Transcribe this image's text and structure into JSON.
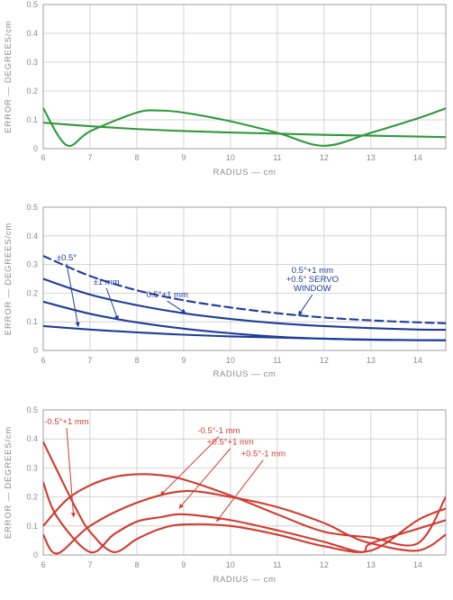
{
  "chart_data": [
    {
      "type": "line",
      "title": "",
      "xlabel": "RADIUS — cm",
      "ylabel": "ERROR — DEGREES/cm",
      "xlim": [
        6,
        14.6
      ],
      "ylim": [
        0,
        0.5
      ],
      "x_ticks": [
        "6",
        "7",
        "8",
        "9",
        "10",
        "11",
        "12",
        "13",
        "14"
      ],
      "y_ticks": [
        "0",
        "0.1",
        "0.2",
        "0.3",
        "0.4",
        "0.5"
      ],
      "grid": true,
      "color": "#2e9a3a",
      "series": [
        {
          "x": [
            6,
            6.5,
            7,
            8,
            8.5,
            9,
            10,
            11,
            12,
            13,
            14,
            14.6
          ],
          "y": [
            0.14,
            0.012,
            0.06,
            0.125,
            0.132,
            0.125,
            0.095,
            0.055,
            0.01,
            0.055,
            0.105,
            0.14
          ],
          "dash": false
        },
        {
          "x": [
            6,
            7,
            8,
            9,
            10,
            11,
            12,
            13,
            14,
            14.6
          ],
          "y": [
            0.09,
            0.078,
            0.068,
            0.061,
            0.056,
            0.052,
            0.048,
            0.045,
            0.042,
            0.04
          ],
          "dash": false
        }
      ],
      "annotations": []
    },
    {
      "type": "line",
      "title": "",
      "xlabel": "RADIUS — cm",
      "ylabel": "ERROR — DEGREES/cm",
      "xlim": [
        6,
        14.6
      ],
      "ylim": [
        0,
        0.5
      ],
      "x_ticks": [
        "6",
        "7",
        "8",
        "9",
        "10",
        "11",
        "12",
        "13",
        "14"
      ],
      "y_ticks": [
        "0",
        "0.1",
        "0.2",
        "0.3",
        "0.4",
        "0.5"
      ],
      "grid": true,
      "color": "#1f3d9a",
      "series": [
        {
          "x": [
            6,
            7,
            8,
            9,
            10,
            11,
            12,
            13,
            14,
            14.6
          ],
          "y": [
            0.33,
            0.26,
            0.21,
            0.175,
            0.15,
            0.13,
            0.115,
            0.105,
            0.098,
            0.095
          ],
          "dash": true
        },
        {
          "x": [
            6,
            7,
            8,
            9,
            10,
            11,
            12,
            13,
            14,
            14.6
          ],
          "y": [
            0.25,
            0.195,
            0.158,
            0.13,
            0.11,
            0.095,
            0.085,
            0.078,
            0.073,
            0.072
          ],
          "dash": false
        },
        {
          "x": [
            6,
            7,
            8,
            9,
            10,
            11,
            12,
            13,
            14,
            14.6
          ],
          "y": [
            0.17,
            0.128,
            0.098,
            0.076,
            0.06,
            0.048,
            0.041,
            0.037,
            0.036,
            0.036
          ],
          "dash": false
        },
        {
          "x": [
            6,
            7,
            8,
            9,
            10,
            11,
            12,
            13,
            14,
            14.6
          ],
          "y": [
            0.085,
            0.073,
            0.063,
            0.055,
            0.049,
            0.045,
            0.041,
            0.038,
            0.036,
            0.035
          ],
          "dash": false
        }
      ],
      "annotations": [
        {
          "lines": [
            "±0.5°"
          ],
          "x": 6.5,
          "y": 0.315,
          "ax": 6.75,
          "ay": 0.082
        },
        {
          "lines": [
            "±1 mm"
          ],
          "x": 7.35,
          "y": 0.23,
          "ax": 7.6,
          "ay": 0.105
        },
        {
          "lines": [
            "0.5°+1 mm"
          ],
          "x": 8.65,
          "y": 0.185,
          "ax": 9.05,
          "ay": 0.13
        },
        {
          "lines": [
            "0.5°+1 mm",
            "+0.5° SERVO",
            "WINDOW"
          ],
          "x": 11.75,
          "y": 0.27,
          "ax": 11.45,
          "ay": 0.122
        }
      ]
    },
    {
      "type": "line",
      "title": "",
      "xlabel": "RADIUS — cm",
      "ylabel": "ERROR — DEGREES/cm",
      "xlim": [
        6,
        14.6
      ],
      "ylim": [
        0,
        0.5
      ],
      "x_ticks": [
        "6",
        "7",
        "8",
        "9",
        "10",
        "11",
        "12",
        "13",
        "14"
      ],
      "y_ticks": [
        "0",
        "0.1",
        "0.2",
        "0.3",
        "0.4",
        "0.5"
      ],
      "grid": true,
      "color": "#d23a2e",
      "series": [
        {
          "x": [
            6,
            6.3,
            6.7,
            7,
            7.5,
            8,
            8.5,
            9,
            10,
            11,
            12,
            13,
            14,
            14.6
          ],
          "y": [
            0.39,
            0.29,
            0.16,
            0.08,
            0.01,
            0.055,
            0.09,
            0.105,
            0.1,
            0.07,
            0.03,
            0.015,
            0.12,
            0.16
          ],
          "dash": false
        },
        {
          "x": [
            6,
            6.3,
            7,
            7.5,
            8,
            8.5,
            9,
            10,
            11,
            12,
            12.8,
            13,
            14,
            14.6
          ],
          "y": [
            0.25,
            0.13,
            0.01,
            0.07,
            0.115,
            0.13,
            0.14,
            0.12,
            0.085,
            0.045,
            0.01,
            0.04,
            0.09,
            0.12
          ],
          "dash": false
        },
        {
          "x": [
            6,
            6.3,
            7,
            8,
            9,
            10,
            11,
            12,
            12.5,
            13,
            14,
            14.6
          ],
          "y": [
            0.07,
            0.005,
            0.1,
            0.18,
            0.22,
            0.2,
            0.165,
            0.11,
            0.07,
            0.04,
            0.015,
            0.07
          ],
          "dash": false
        },
        {
          "x": [
            6,
            6.5,
            7,
            7.5,
            8,
            8.5,
            9,
            10,
            11,
            12,
            13,
            14,
            14.6
          ],
          "y": [
            0.1,
            0.19,
            0.24,
            0.268,
            0.278,
            0.275,
            0.26,
            0.205,
            0.14,
            0.08,
            0.06,
            0.04,
            0.2
          ],
          "dash": false
        }
      ],
      "annotations": [
        {
          "lines": [
            "-0.5°+1 mm"
          ],
          "x": 6.5,
          "y": 0.45,
          "ax": 6.65,
          "ay": 0.13
        },
        {
          "lines": [
            "-0.5°-1 mm"
          ],
          "x": 9.75,
          "y": 0.42,
          "ax": 8.5,
          "ay": 0.205
        },
        {
          "lines": [
            "+0.5°+1 mm"
          ],
          "x": 10.0,
          "y": 0.38,
          "ax": 8.9,
          "ay": 0.16
        },
        {
          "lines": [
            "+0.5°-1 mm"
          ],
          "x": 10.7,
          "y": 0.34,
          "ax": 9.7,
          "ay": 0.115
        }
      ]
    }
  ]
}
